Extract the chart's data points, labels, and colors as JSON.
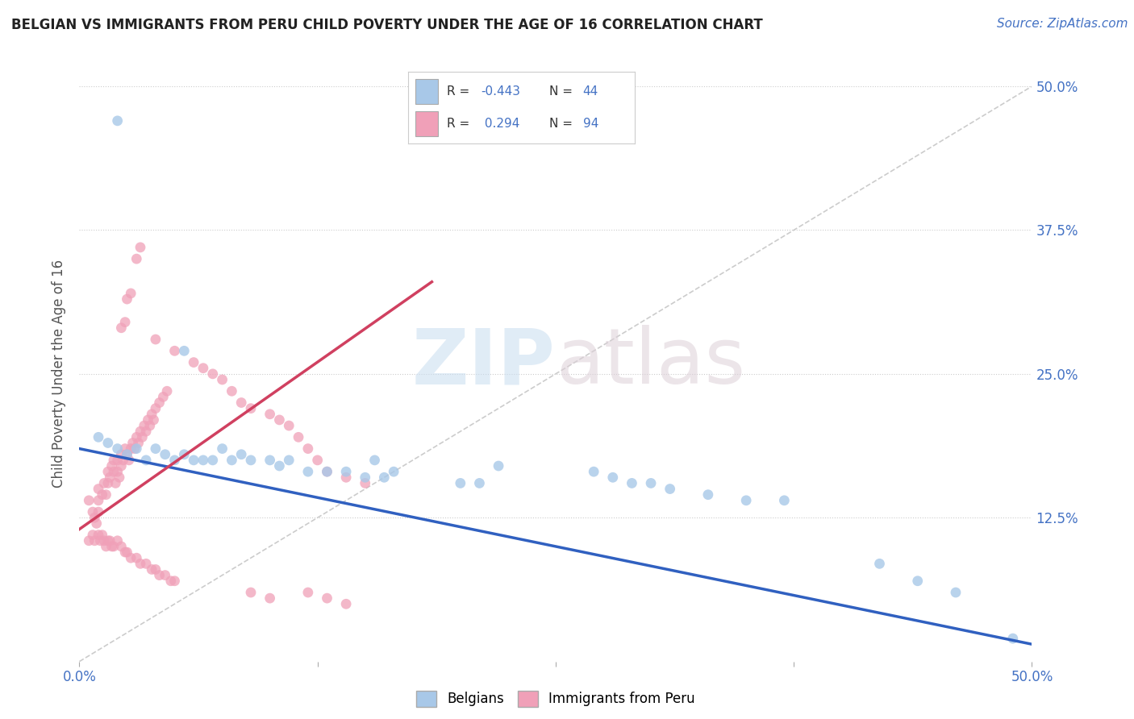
{
  "title": "BELGIAN VS IMMIGRANTS FROM PERU CHILD POVERTY UNDER THE AGE OF 16 CORRELATION CHART",
  "source": "Source: ZipAtlas.com",
  "ylabel": "Child Poverty Under the Age of 16",
  "xlim": [
    0.0,
    0.5
  ],
  "ylim": [
    0.0,
    0.5
  ],
  "xtick_vals": [
    0.0,
    0.125,
    0.25,
    0.375,
    0.5
  ],
  "xtick_labels": [
    "0.0%",
    "",
    "",
    "",
    "50.0%"
  ],
  "ytick_vals": [
    0.0,
    0.125,
    0.25,
    0.375,
    0.5
  ],
  "ytick_labels_right": [
    "",
    "12.5%",
    "25.0%",
    "37.5%",
    "50.0%"
  ],
  "belgian_color": "#a8c8e8",
  "peru_color": "#f0a0b8",
  "belgian_line_color": "#3060c0",
  "peru_line_color": "#d04060",
  "diag_color": "#cccccc",
  "belgian_R": -0.443,
  "belgian_N": 44,
  "peru_R": 0.294,
  "peru_N": 94,
  "legend_belgians": "Belgians",
  "legend_peru": "Immigrants from Peru",
  "background_color": "#ffffff",
  "blue_text_color": "#4472c4",
  "title_color": "#222222",
  "ylabel_color": "#555555",
  "bel_trend_x0": 0.0,
  "bel_trend_y0": 0.185,
  "bel_trend_x1": 0.5,
  "bel_trend_y1": 0.015,
  "peru_trend_x0": 0.0,
  "peru_trend_y0": 0.115,
  "peru_trend_x1": 0.185,
  "peru_trend_y1": 0.33,
  "belgian_points": [
    [
      0.02,
      0.47
    ],
    [
      0.055,
      0.27
    ],
    [
      0.01,
      0.195
    ],
    [
      0.015,
      0.19
    ],
    [
      0.02,
      0.185
    ],
    [
      0.025,
      0.18
    ],
    [
      0.03,
      0.185
    ],
    [
      0.035,
      0.175
    ],
    [
      0.04,
      0.185
    ],
    [
      0.045,
      0.18
    ],
    [
      0.05,
      0.175
    ],
    [
      0.055,
      0.18
    ],
    [
      0.06,
      0.175
    ],
    [
      0.065,
      0.175
    ],
    [
      0.07,
      0.175
    ],
    [
      0.075,
      0.185
    ],
    [
      0.08,
      0.175
    ],
    [
      0.085,
      0.18
    ],
    [
      0.09,
      0.175
    ],
    [
      0.1,
      0.175
    ],
    [
      0.105,
      0.17
    ],
    [
      0.11,
      0.175
    ],
    [
      0.12,
      0.165
    ],
    [
      0.13,
      0.165
    ],
    [
      0.14,
      0.165
    ],
    [
      0.15,
      0.16
    ],
    [
      0.155,
      0.175
    ],
    [
      0.16,
      0.16
    ],
    [
      0.165,
      0.165
    ],
    [
      0.2,
      0.155
    ],
    [
      0.21,
      0.155
    ],
    [
      0.22,
      0.17
    ],
    [
      0.27,
      0.165
    ],
    [
      0.28,
      0.16
    ],
    [
      0.29,
      0.155
    ],
    [
      0.3,
      0.155
    ],
    [
      0.31,
      0.15
    ],
    [
      0.33,
      0.145
    ],
    [
      0.35,
      0.14
    ],
    [
      0.37,
      0.14
    ],
    [
      0.42,
      0.085
    ],
    [
      0.44,
      0.07
    ],
    [
      0.46,
      0.06
    ],
    [
      0.49,
      0.02
    ]
  ],
  "peru_points": [
    [
      0.005,
      0.14
    ],
    [
      0.007,
      0.13
    ],
    [
      0.008,
      0.125
    ],
    [
      0.009,
      0.12
    ],
    [
      0.01,
      0.15
    ],
    [
      0.01,
      0.14
    ],
    [
      0.01,
      0.13
    ],
    [
      0.012,
      0.145
    ],
    [
      0.013,
      0.155
    ],
    [
      0.014,
      0.145
    ],
    [
      0.015,
      0.155
    ],
    [
      0.015,
      0.165
    ],
    [
      0.016,
      0.16
    ],
    [
      0.017,
      0.17
    ],
    [
      0.018,
      0.165
    ],
    [
      0.018,
      0.175
    ],
    [
      0.019,
      0.155
    ],
    [
      0.02,
      0.165
    ],
    [
      0.02,
      0.175
    ],
    [
      0.021,
      0.16
    ],
    [
      0.022,
      0.17
    ],
    [
      0.022,
      0.18
    ],
    [
      0.023,
      0.175
    ],
    [
      0.024,
      0.185
    ],
    [
      0.025,
      0.18
    ],
    [
      0.026,
      0.175
    ],
    [
      0.027,
      0.185
    ],
    [
      0.028,
      0.19
    ],
    [
      0.029,
      0.185
    ],
    [
      0.03,
      0.195
    ],
    [
      0.031,
      0.19
    ],
    [
      0.032,
      0.2
    ],
    [
      0.033,
      0.195
    ],
    [
      0.034,
      0.205
    ],
    [
      0.035,
      0.2
    ],
    [
      0.036,
      0.21
    ],
    [
      0.037,
      0.205
    ],
    [
      0.038,
      0.215
    ],
    [
      0.039,
      0.21
    ],
    [
      0.04,
      0.22
    ],
    [
      0.042,
      0.225
    ],
    [
      0.044,
      0.23
    ],
    [
      0.046,
      0.235
    ],
    [
      0.005,
      0.105
    ],
    [
      0.007,
      0.11
    ],
    [
      0.008,
      0.105
    ],
    [
      0.01,
      0.11
    ],
    [
      0.011,
      0.105
    ],
    [
      0.012,
      0.11
    ],
    [
      0.013,
      0.105
    ],
    [
      0.014,
      0.1
    ],
    [
      0.015,
      0.105
    ],
    [
      0.016,
      0.105
    ],
    [
      0.017,
      0.1
    ],
    [
      0.018,
      0.1
    ],
    [
      0.02,
      0.105
    ],
    [
      0.022,
      0.1
    ],
    [
      0.024,
      0.095
    ],
    [
      0.025,
      0.095
    ],
    [
      0.027,
      0.09
    ],
    [
      0.03,
      0.09
    ],
    [
      0.032,
      0.085
    ],
    [
      0.035,
      0.085
    ],
    [
      0.038,
      0.08
    ],
    [
      0.04,
      0.08
    ],
    [
      0.042,
      0.075
    ],
    [
      0.045,
      0.075
    ],
    [
      0.048,
      0.07
    ],
    [
      0.05,
      0.07
    ],
    [
      0.03,
      0.35
    ],
    [
      0.032,
      0.36
    ],
    [
      0.025,
      0.315
    ],
    [
      0.027,
      0.32
    ],
    [
      0.022,
      0.29
    ],
    [
      0.024,
      0.295
    ],
    [
      0.04,
      0.28
    ],
    [
      0.05,
      0.27
    ],
    [
      0.06,
      0.26
    ],
    [
      0.065,
      0.255
    ],
    [
      0.07,
      0.25
    ],
    [
      0.075,
      0.245
    ],
    [
      0.08,
      0.235
    ],
    [
      0.085,
      0.225
    ],
    [
      0.09,
      0.22
    ],
    [
      0.1,
      0.215
    ],
    [
      0.105,
      0.21
    ],
    [
      0.11,
      0.205
    ],
    [
      0.115,
      0.195
    ],
    [
      0.12,
      0.185
    ],
    [
      0.125,
      0.175
    ],
    [
      0.13,
      0.165
    ],
    [
      0.14,
      0.16
    ],
    [
      0.15,
      0.155
    ],
    [
      0.09,
      0.06
    ],
    [
      0.1,
      0.055
    ],
    [
      0.12,
      0.06
    ],
    [
      0.13,
      0.055
    ],
    [
      0.14,
      0.05
    ]
  ]
}
